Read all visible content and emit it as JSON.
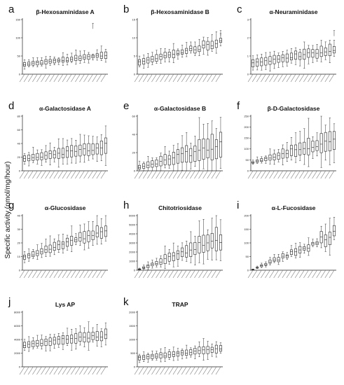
{
  "figure": {
    "ylabel": "Specific activity (nmol/mg/hour)"
  },
  "chart_data": [
    {
      "letter": "a",
      "title": "β-Hexosaminidase A",
      "type": "box",
      "ylim": [
        0,
        150
      ],
      "yticks": [
        0,
        50,
        100,
        150
      ],
      "n": 20,
      "box_range": [
        [
          22,
          32
        ],
        [
          46,
          60
        ]
      ],
      "outliers": [
        [
          16,
          140
        ]
      ]
    },
    {
      "letter": "b",
      "title": "β-Hexosaminidase B",
      "type": "box",
      "ylim": [
        0,
        15
      ],
      "yticks": [
        0,
        5,
        10,
        15
      ],
      "n": 20,
      "box_range": [
        [
          2.5,
          4
        ],
        [
          8,
          10
        ]
      ],
      "outliers": [
        [
          19,
          12
        ]
      ]
    },
    {
      "letter": "c",
      "title": "α-Neuraminidase",
      "type": "box",
      "ylim": [
        0,
        3
      ],
      "yticks": [
        0,
        1,
        2,
        3
      ],
      "n": 20,
      "box_range": [
        [
          0.4,
          0.8
        ],
        [
          1.1,
          1.6
        ]
      ],
      "outliers": [
        [
          19,
          2.4
        ]
      ]
    },
    {
      "letter": "d",
      "title": "α-Galactosidase A",
      "type": "box",
      "ylim": [
        0,
        80
      ],
      "yticks": [
        0,
        20,
        40,
        60,
        80
      ],
      "n": 20,
      "box_range": [
        [
          14,
          22
        ],
        [
          25,
          45
        ]
      ],
      "outliers": []
    },
    {
      "letter": "e",
      "title": "α-Galactosidase B",
      "type": "box",
      "ylim": [
        0,
        60
      ],
      "yticks": [
        0,
        20,
        40,
        60
      ],
      "n": 20,
      "box_range": [
        [
          2,
          6
        ],
        [
          15,
          40
        ]
      ],
      "outliers": []
    },
    {
      "letter": "f",
      "title": "β-D-Galactosidase",
      "type": "box",
      "ylim": [
        0,
        250
      ],
      "yticks": [
        0,
        50,
        100,
        150,
        200,
        250
      ],
      "n": 20,
      "box_range": [
        [
          35,
          42
        ],
        [
          100,
          180
        ]
      ],
      "outliers": []
    },
    {
      "letter": "g",
      "title": "α-Glucosidase",
      "type": "box",
      "ylim": [
        0,
        40
      ],
      "yticks": [
        0,
        10,
        20,
        30,
        40
      ],
      "n": 20,
      "box_range": [
        [
          8,
          11
        ],
        [
          26,
          34
        ]
      ],
      "outliers": []
    },
    {
      "letter": "h",
      "title": "Chitotriosidase",
      "type": "box",
      "ylim": [
        0,
        6000
      ],
      "yticks": [
        0,
        1000,
        2000,
        3000,
        4000,
        5000,
        6000
      ],
      "n": 20,
      "box_range": [
        [
          50,
          150
        ],
        [
          2500,
          4500
        ]
      ],
      "outliers": []
    },
    {
      "letter": "i",
      "title": "α-L-Fucosidase",
      "type": "box",
      "ylim": [
        0,
        200
      ],
      "yticks": [
        0,
        50,
        100,
        150,
        200
      ],
      "n": 20,
      "box_range": [
        [
          1,
          3
        ],
        [
          110,
          150
        ]
      ],
      "outliers": []
    },
    {
      "letter": "j",
      "title": "Lys AP",
      "type": "box",
      "ylim": [
        0,
        8000
      ],
      "yticks": [
        0,
        2000,
        4000,
        6000,
        8000
      ],
      "n": 20,
      "box_range": [
        [
          2800,
          3600
        ],
        [
          4000,
          5500
        ]
      ],
      "outliers": []
    },
    {
      "letter": "k",
      "title": "TRAP",
      "type": "box",
      "ylim": [
        0,
        2000
      ],
      "yticks": [
        0,
        500,
        1000,
        1500,
        2000
      ],
      "n": 20,
      "box_range": [
        [
          250,
          400
        ],
        [
          550,
          800
        ]
      ],
      "outliers": []
    }
  ]
}
